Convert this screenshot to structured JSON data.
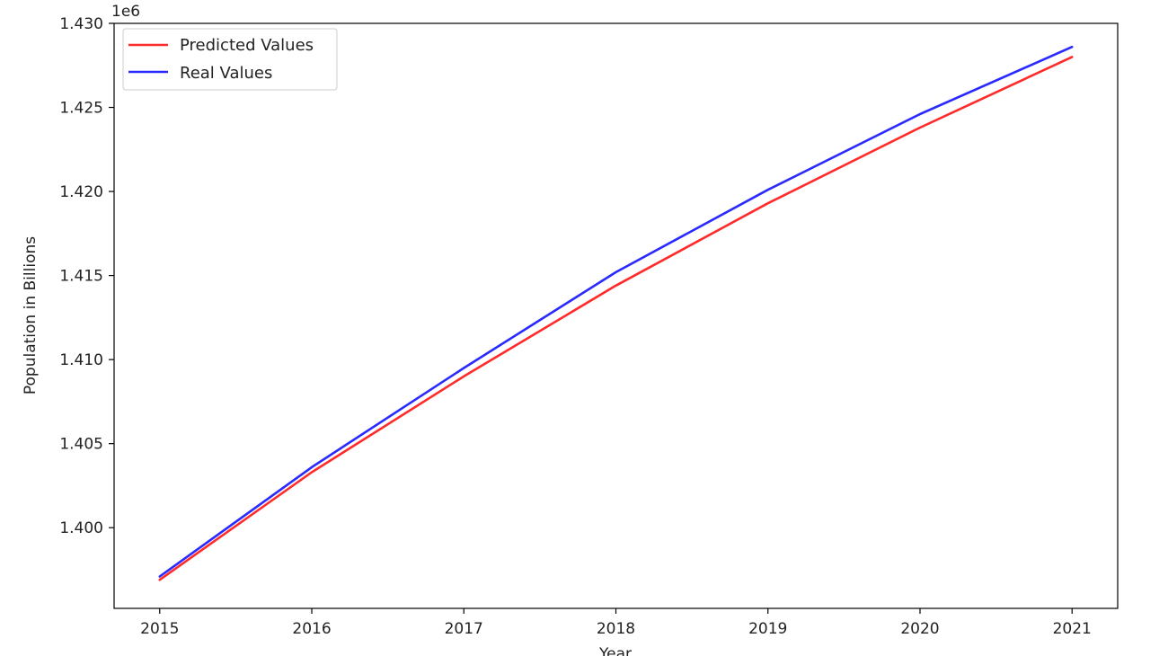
{
  "chart_data": {
    "type": "line",
    "title": "",
    "xlabel": "Year",
    "ylabel": "Population in Billions",
    "y_offset_label": "1e6",
    "xlim": [
      2014.7,
      2021.3
    ],
    "ylim": [
      1395.2,
      1430.0
    ],
    "x_ticks": [
      2015,
      2016,
      2017,
      2018,
      2019,
      2020,
      2021
    ],
    "x_tick_labels": [
      "2015",
      "2016",
      "2017",
      "2018",
      "2019",
      "2020",
      "2021"
    ],
    "y_ticks": [
      1400,
      1405,
      1410,
      1415,
      1420,
      1425,
      1430
    ],
    "y_tick_labels": [
      "1.400",
      "1.405",
      "1.410",
      "1.415",
      "1.420",
      "1.425",
      "1.430"
    ],
    "grid": false,
    "legend_position": "top-left",
    "x": [
      2015,
      2016,
      2017,
      2018,
      2019,
      2020,
      2021
    ],
    "series": [
      {
        "name": "Predicted Values",
        "color": "#ff2a2a",
        "values": [
          1396.9,
          1403.3,
          1409.0,
          1414.4,
          1419.3,
          1423.8,
          1428.0
        ]
      },
      {
        "name": "Real Values",
        "color": "#2a2aff",
        "values": [
          1397.1,
          1403.6,
          1409.5,
          1415.2,
          1420.1,
          1424.6,
          1428.6
        ]
      }
    ]
  }
}
